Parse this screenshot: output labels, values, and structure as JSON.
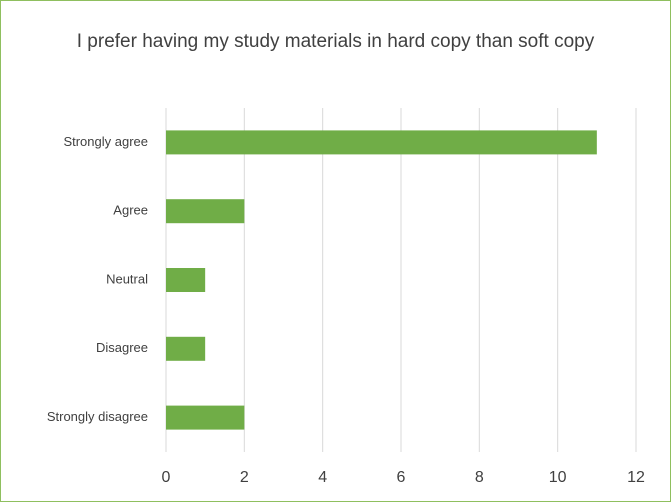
{
  "chart_data": {
    "type": "bar",
    "orientation": "horizontal",
    "title": "I prefer having my study materials in hard copy than soft copy",
    "categories": [
      "Strongly agree",
      "Agree",
      "Neutral",
      "Disagree",
      "Strongly disagree"
    ],
    "values": [
      11,
      2,
      1,
      1,
      2
    ],
    "color": "#70ad47",
    "xlim": [
      0,
      12
    ],
    "xticks": [
      0,
      2,
      4,
      6,
      8,
      10,
      12
    ],
    "grid": true
  }
}
